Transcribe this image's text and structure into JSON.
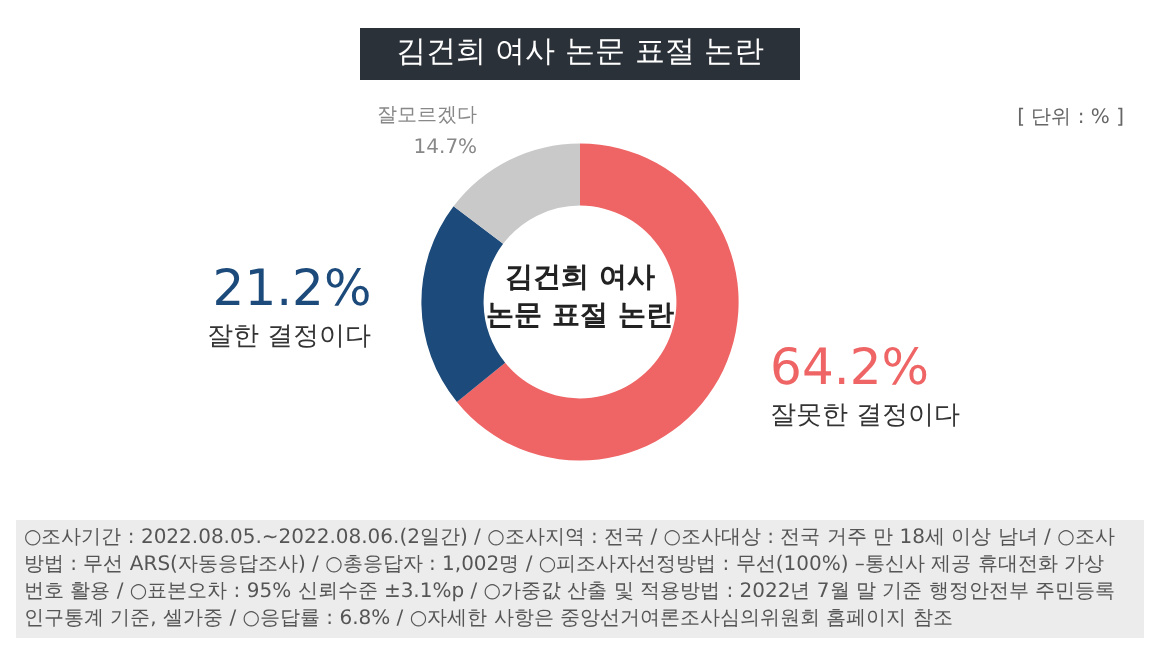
{
  "chart_data": {
    "type": "donut",
    "title": "김건희 여사 논문 표절 논란",
    "categories": [
      "잘못한 결정이다",
      "잘한 결정이다",
      "잘모르겠다"
    ],
    "values": [
      64.2,
      21.2,
      14.7
    ],
    "value_labels": [
      "64.2%",
      "21.2%",
      "14.7%"
    ],
    "colors": [
      "#ef6464",
      "#1c4a7a",
      "#c9c9c9"
    ],
    "legend": false,
    "annotations": [
      "김건희 여사",
      "논문 표절 논란",
      "[ 단위 : % ]",
      "○조사기간 : 2022.08.05.~2022.08.06.(2일간) / ○조사지역 : 전국 / ○조사대상 : 전국 거주 만 18세 이상 남녀 / ○조사방법 : 무선 ARS(자동응답조사) / ○총응답자 : 1,002명 / ○피조사자선정방법 : 무선(100%) –통신사 제공 휴대전화 가상번호 활용 / ○표본오차 : 95% 신뢰수준 ±3.1%p / ○가중값 산출 및 적용방법 : 2022년 7월 말 기준 행정안전부 주민등록인구통계 기준, 셀가중 / ○응답률 : 6.8% / ○자세한 사항은 중앙선거여론조사심의위원회 홈페이지 참조"
    ]
  }
}
